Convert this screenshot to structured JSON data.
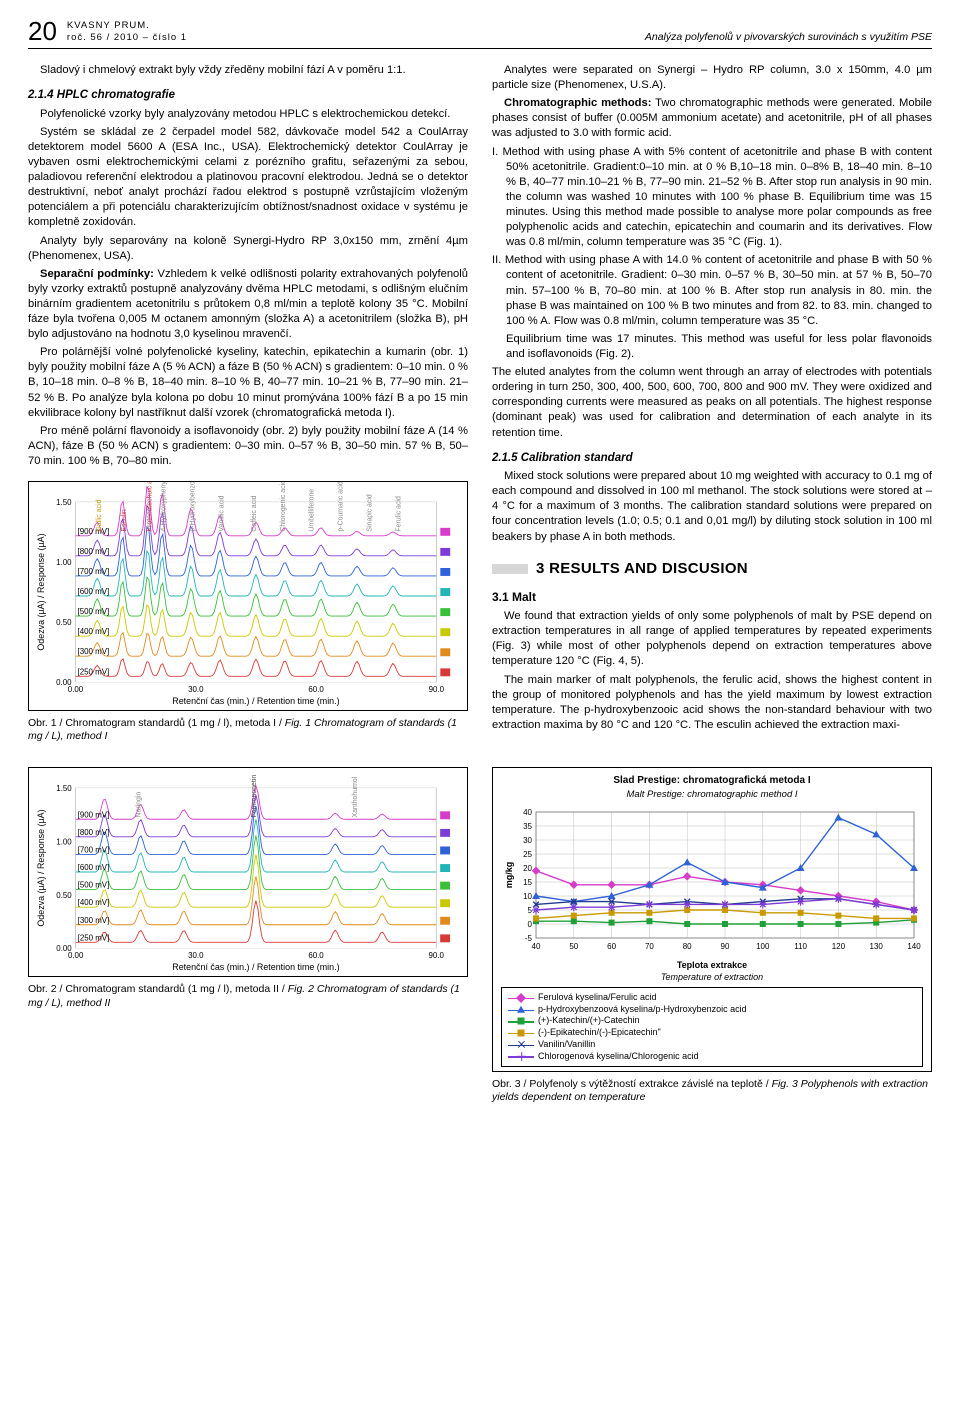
{
  "header": {
    "page_number": "20",
    "journal_line1": "KVASNY PRUM.",
    "journal_line2": "roč. 56 / 2010 – číslo 1",
    "running_title": "Analýza polyfenolů v pivovarských surovinách s využitím PSE"
  },
  "left": {
    "p1": "Sladový i chmelový extrakt byly vždy zředěny mobilní fází A v poměru 1:1.",
    "h1": "2.1.4 HPLC chromatografie",
    "p2": "Polyfenolické vzorky byly analyzovány metodou HPLC s elektrochemickou detekcí.",
    "p3": "Systém se skládal ze 2 čerpadel model 582, dávkovače model 542 a CoulArray detektorem model 5600 A (ESA Inc., USA). Elektrochemický detektor CoulArray je vybaven osmi elektrochemickými celami z porézního grafitu, seřazenými za sebou, paladiovou referenční elektrodou a platinovou pracovní elektrodou. Jedná se o detektor destruktivní, neboť analyt prochází řadou elektrod s postupně vzrůstajícím vloženým potenciálem a při potenciálu charakterizujícím obtížnost/snadnost oxidace v systému je kompletně zoxidován.",
    "p4": "Analyty byly separovány na koloně Synergi-Hydro RP 3,0x150 mm, zrnění 4µm (Phenomenex, USA).",
    "p5a_bold": "Separační podmínky:",
    "p5": " Vzhledem k velké odlišnosti polarity extrahovaných polyfenolů byly vzorky extraktů postupně analyzovány dvěma HPLC metodami, s odlišným elučním binárním gradientem acetonitrilu s průtokem 0,8 ml/min a teplotě kolony 35 °C. Mobilní fáze byla tvořena 0,005 M octanem amonným (složka A) a acetonitrilem (složka B), pH bylo adjustováno na hodnotu 3,0 kyselinou mravenčí.",
    "p6": "Pro polárnější volné polyfenolické kyseliny, katechin, epikatechin a kumarin (obr. 1) byly použity mobilní fáze A (5 % ACN) a fáze B (50 % ACN) s gradientem: 0–10 min. 0 % B, 10–18 min. 0–8 % B, 18–40 min. 8–10 % B, 40–77 min. 10–21 % B, 77–90 min. 21–52 % B. Po analýze byla kolona po dobu 10 minut promývána 100% fází B a po 15 min ekvilibrace kolony byl nastříknut další vzorek (chromatografická metoda I).",
    "p7": "Pro méně polární flavonoidy a isoflavonoidy (obr. 2) byly použity mobilní fáze A (14 % ACN), fáze B (50 % ACN) s gradientem: 0–30 min. 0–57 % B, 30–50 min. 57 % B, 50–70 min. 100 % B, 70–80 min.",
    "fig1_caption_main": "Obr. 1 / Chromatogram standardů (1 mg / l), metoda I / ",
    "fig1_caption_it": "Fig. 1 Chromatogram of standards (1 mg / L), method I",
    "fig2_caption_main": "Obr. 2 / Chromatogram standardů (1 mg / l), metoda II / ",
    "fig2_caption_it": "Fig. 2 Chromatogram of standards (1 mg / L), method II"
  },
  "right": {
    "p1": "Analytes were separated on Synergi – Hydro RP column, 3.0 x 150mm, 4.0 µm particle size (Phenomenex, U.S.A).",
    "p2a_bold": "Chromatographic methods:",
    "p2": " Two chromatographic methods were generated. Mobile phases consist of buffer (0.005M ammonium acetate) and acetonitrile, pH of all phases was adjusted to 3.0 with formic acid.",
    "li1": "I. Method with using phase A with 5% content of acetonitrile and phase B with content 50% acetonitrile. Gradient:0–10 min. at 0 % B,10–18 min. 0–8% B, 18–40 min. 8–10 % B, 40–77 min.10–21 % B, 77–90 min. 21–52 % B. After stop run analysis in 90 min. the column was washed 10 minutes with 100 % phase B. Equilibrium time was 15 minutes. Using this method made possible to analyse more polar compounds as free polyphenolic acids and catechin, epicatechin and coumarin and its derivatives. Flow was 0.8 ml/min, column temperature was 35 °C (Fig. 1).",
    "li2": "II. Method with using phase A with 14.0 % content of acetonitrile and phase B with 50 % content of acetonitrile. Gradient: 0–30 min. 0–57 % B, 30–50 min. at 57 % B, 50–70 min. 57–100 % B, 70–80 min. at 100 % B. After stop run analysis in 80. min. the phase B was maintained on 100 % B two minutes and from 82. to 83. min. changed to 100 % A. Flow was 0.8 ml/min, column temperature was 35 °C.",
    "li2b": "Equilibrium time was 17 minutes. This method was useful for less polar flavonoids and isoflavonoids (Fig. 2).",
    "p3": "The eluted analytes from the column went through an array of electrodes with potentials ordering in turn 250, 300, 400, 500, 600, 700, 800 and 900 mV. They were oxidized and corresponding currents were measured as peaks on all potentials. The highest response (dominant peak) was used for calibration and determination of each analyte in its retention time.",
    "h2": "2.1.5 Calibration standard",
    "p4": "Mixed stock solutions were prepared about 10 mg weighted with accuracy to 0.1 mg of each compound and dissolved in 100 ml methanol. The stock solutions were stored at –4 °C for a maximum of 3 months. The calibration standard solutions were prepared on four concentration levels (1.0; 0.5; 0.1 and 0,01 mg/l) by diluting stock solution in 100 ml beakers by phase A in both methods.",
    "h_results": "3 RESULTS AND DISCUSION",
    "h_malt": "3.1 Malt",
    "p5": "We found that extraction yields of only some polyphenols of malt by PSE depend on extraction temperatures in all range of applied temperatures by repeated experiments (Fig. 3) while most of other polyphenols depend on extraction temperatures above temperature 120 °C (Fig. 4, 5).",
    "p6": "The main marker of malt polyphenols, the ferulic acid, shows the highest content in the group of monitored polyphenols and has the yield maximum by lowest extraction temperature. The p-hydroxybenzooic acid shows the non-standard behaviour with two extraction maxima by 80 °C and 120 °C. The esculin achieved the extraction maxi-"
  },
  "chromatogram": {
    "trace_colors": [
      "#d83a3a",
      "#e28a1e",
      "#c9c900",
      "#3abf3a",
      "#22b5b5",
      "#2e62d6",
      "#7d3cd6",
      "#d63cc9"
    ],
    "x_ticks": [
      "0.00",
      "30.0",
      "60.0",
      "90.0"
    ],
    "y_ticks": [
      "0.00",
      "0.50",
      "1.00",
      "1.50"
    ],
    "xlabel1": "Retenční čas (min.)",
    "xlabel2": "Retention time (min.)",
    "ylabel1": "Odezva (µA)",
    "ylabel2": "Response (µA)",
    "pot_labels": [
      "[900 mV]",
      "[800 mV]",
      "[700 mV]",
      "[600 mV]",
      "[500 mV]",
      "[400 mV]",
      "[300 mV]",
      "[250 mV]"
    ]
  },
  "chromatogram2": {
    "center_label": "Formononetin",
    "left_label": "Naringin",
    "right_labels": [
      "Xanthohumol"
    ],
    "pot_labels": [
      "[900 mV]",
      "[800 mV]",
      "[700 mV]",
      "[600 mV]",
      "[500 mV]",
      "[400 mV]",
      "[300 mV]",
      "[250 mV]"
    ]
  },
  "fig3": {
    "title": "Slad Prestige: chromatografická metoda I",
    "subtitle": "Malt Prestige: chromatographic method I",
    "xlabel": "Teplota extrakce",
    "xlabel_it": "Temperature of extraction",
    "ylabel": "mg/kg",
    "x_ticks": [
      40,
      50,
      60,
      70,
      80,
      90,
      100,
      110,
      120,
      130,
      140
    ],
    "y_ticks": [
      -5,
      0,
      5,
      10,
      15,
      20,
      25,
      30,
      35,
      40
    ],
    "xlim": [
      40,
      140
    ],
    "ylim": [
      -5,
      40
    ],
    "grid_color": "#bfbfbf",
    "series": [
      {
        "name": "Ferulová kyselina/Ferulic acid",
        "color": "#d63cc9",
        "marker": "diamond",
        "data": [
          [
            40,
            19
          ],
          [
            50,
            14
          ],
          [
            60,
            14
          ],
          [
            70,
            14
          ],
          [
            80,
            17
          ],
          [
            90,
            15
          ],
          [
            100,
            14
          ],
          [
            110,
            12
          ],
          [
            120,
            10
          ],
          [
            130,
            8
          ],
          [
            140,
            5
          ]
        ]
      },
      {
        "name": "p-Hydroxybenzoová kyselina/p-Hydroxybenzoic acid",
        "color": "#2e62d6",
        "marker": "triangle",
        "data": [
          [
            40,
            10
          ],
          [
            50,
            8
          ],
          [
            60,
            10
          ],
          [
            70,
            14
          ],
          [
            80,
            22
          ],
          [
            90,
            15
          ],
          [
            100,
            13
          ],
          [
            110,
            20
          ],
          [
            120,
            38
          ],
          [
            130,
            32
          ],
          [
            140,
            20
          ]
        ]
      },
      {
        "name": "(+)-Katechin/(+)-Catechin",
        "color": "#1fa038",
        "marker": "square",
        "data": [
          [
            40,
            1
          ],
          [
            50,
            1
          ],
          [
            60,
            0.5
          ],
          [
            70,
            1
          ],
          [
            80,
            0
          ],
          [
            90,
            0
          ],
          [
            100,
            0
          ],
          [
            110,
            0
          ],
          [
            120,
            0
          ],
          [
            130,
            0.5
          ],
          [
            140,
            1.5
          ]
        ]
      },
      {
        "name": "(-)-Epikatechin/(-)-Epicatechin\"",
        "color": "#c99a00",
        "marker": "square",
        "data": [
          [
            40,
            2
          ],
          [
            50,
            3
          ],
          [
            60,
            4
          ],
          [
            70,
            4
          ],
          [
            80,
            5
          ],
          [
            90,
            5
          ],
          [
            100,
            4
          ],
          [
            110,
            4
          ],
          [
            120,
            3
          ],
          [
            130,
            2
          ],
          [
            140,
            2
          ]
        ]
      },
      {
        "name": "Vanilin/Vanillin",
        "color": "#223a8f",
        "marker": "x",
        "data": [
          [
            40,
            7
          ],
          [
            50,
            8
          ],
          [
            60,
            8
          ],
          [
            70,
            7
          ],
          [
            80,
            8
          ],
          [
            90,
            7
          ],
          [
            100,
            8
          ],
          [
            110,
            9
          ],
          [
            120,
            9
          ],
          [
            130,
            7
          ],
          [
            140,
            5
          ]
        ]
      },
      {
        "name": "Chlorogenová kyselina/Chlorogenic acid",
        "color": "#7d3cd6",
        "marker": "star",
        "data": [
          [
            40,
            5
          ],
          [
            50,
            6
          ],
          [
            60,
            6
          ],
          [
            70,
            7
          ],
          [
            80,
            7
          ],
          [
            90,
            7
          ],
          [
            100,
            7
          ],
          [
            110,
            8
          ],
          [
            120,
            9
          ],
          [
            130,
            7
          ],
          [
            140,
            5
          ]
        ]
      }
    ],
    "caption_main": "Obr. 3 / Polyfenoly s výtěžností extrakce závislé na teplotě / ",
    "caption_it": "Fig. 3 Polyphenols with extraction yields dependent on temperature"
  }
}
